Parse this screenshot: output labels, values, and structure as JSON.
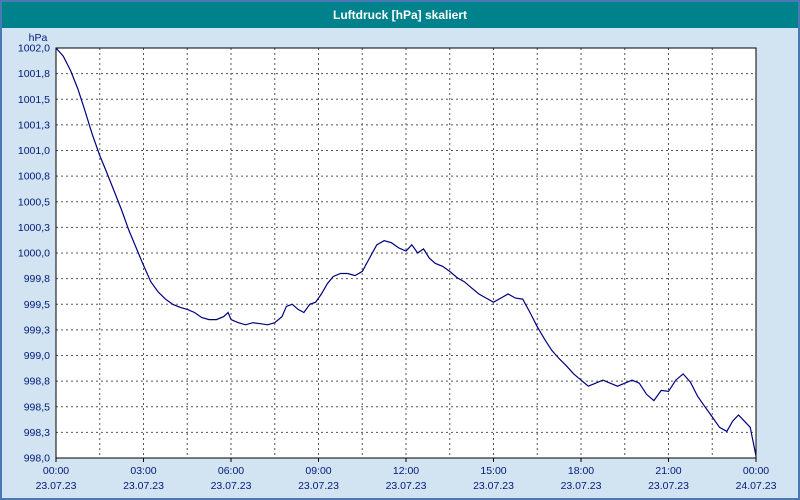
{
  "window": {
    "title": "Luftdruck [hPa] skaliert"
  },
  "colors": {
    "titlebar_bg": "#00828c",
    "titlebar_text": "#ffffff",
    "window_border": "#4a7ab5",
    "page_bg": "#d2e4f2"
  },
  "chart_data": {
    "type": "line",
    "title": "Luftdruck [hPa] skaliert",
    "ylabel": "hPa",
    "unit_label": "hPa",
    "xlabel": "",
    "ylim": [
      998.0,
      1002.0
    ],
    "y_tick_step": 0.25,
    "y_tick_labels": [
      "1002,0",
      "1001,8",
      "1001,5",
      "1001,3",
      "1001,0",
      "1000,8",
      "1000,5",
      "1000,3",
      "1000,0",
      "999,8",
      "999,5",
      "999,3",
      "999,0",
      "998,8",
      "998,5",
      "998,3",
      "998,0"
    ],
    "x_range_hours": [
      0,
      24
    ],
    "x_grid_step_hours": 1.5,
    "x_ticks": [
      {
        "hour": 0,
        "time": "00:00",
        "date": "23.07.23"
      },
      {
        "hour": 3,
        "time": "03:00",
        "date": "23.07.23"
      },
      {
        "hour": 6,
        "time": "06:00",
        "date": "23.07.23"
      },
      {
        "hour": 9,
        "time": "09:00",
        "date": "23.07.23"
      },
      {
        "hour": 12,
        "time": "12:00",
        "date": "23.07.23"
      },
      {
        "hour": 15,
        "time": "15:00",
        "date": "23.07.23"
      },
      {
        "hour": 18,
        "time": "18:00",
        "date": "23.07.23"
      },
      {
        "hour": 21,
        "time": "21:00",
        "date": "23.07.23"
      },
      {
        "hour": 24,
        "time": "00:00",
        "date": "24.07.23"
      }
    ],
    "grid": true,
    "legend": "none",
    "colors": {
      "plot_bg": "#ffffff",
      "grid": "#555555",
      "axis": "#000000",
      "text": "#001a7a",
      "line": "#000080"
    },
    "series": [
      {
        "name": "Luftdruck",
        "points": [
          [
            0,
            1002.0
          ],
          [
            0.25,
            1001.92
          ],
          [
            0.5,
            1001.78
          ],
          [
            0.75,
            1001.6
          ],
          [
            1,
            1001.38
          ],
          [
            1.25,
            1001.15
          ],
          [
            1.5,
            1000.95
          ],
          [
            1.75,
            1000.78
          ],
          [
            2,
            1000.6
          ],
          [
            2.25,
            1000.42
          ],
          [
            2.5,
            1000.22
          ],
          [
            2.75,
            1000.05
          ],
          [
            3,
            999.88
          ],
          [
            3.25,
            999.72
          ],
          [
            3.5,
            999.62
          ],
          [
            3.75,
            999.55
          ],
          [
            4,
            999.5
          ],
          [
            4.25,
            999.47
          ],
          [
            4.5,
            999.45
          ],
          [
            4.75,
            999.42
          ],
          [
            5,
            999.37
          ],
          [
            5.25,
            999.35
          ],
          [
            5.5,
            999.35
          ],
          [
            5.75,
            999.38
          ],
          [
            5.9,
            999.42
          ],
          [
            6,
            999.35
          ],
          [
            6.25,
            999.32
          ],
          [
            6.5,
            999.3
          ],
          [
            6.75,
            999.32
          ],
          [
            7,
            999.31
          ],
          [
            7.25,
            999.3
          ],
          [
            7.5,
            999.32
          ],
          [
            7.75,
            999.38
          ],
          [
            7.9,
            999.48
          ],
          [
            8.1,
            999.5
          ],
          [
            8.3,
            999.45
          ],
          [
            8.5,
            999.42
          ],
          [
            8.7,
            999.5
          ],
          [
            8.9,
            999.52
          ],
          [
            9.1,
            999.6
          ],
          [
            9.3,
            999.7
          ],
          [
            9.5,
            999.77
          ],
          [
            9.75,
            999.8
          ],
          [
            10,
            999.8
          ],
          [
            10.25,
            999.78
          ],
          [
            10.5,
            999.82
          ],
          [
            10.75,
            999.95
          ],
          [
            11,
            1000.08
          ],
          [
            11.25,
            1000.12
          ],
          [
            11.5,
            1000.1
          ],
          [
            11.75,
            1000.05
          ],
          [
            12,
            1000.02
          ],
          [
            12.2,
            1000.08
          ],
          [
            12.4,
            1000.0
          ],
          [
            12.6,
            1000.04
          ],
          [
            12.8,
            999.95
          ],
          [
            13,
            999.9
          ],
          [
            13.25,
            999.87
          ],
          [
            13.5,
            999.82
          ],
          [
            13.75,
            999.76
          ],
          [
            14,
            999.72
          ],
          [
            14.25,
            999.66
          ],
          [
            14.5,
            999.6
          ],
          [
            14.75,
            999.56
          ],
          [
            15,
            999.52
          ],
          [
            15.25,
            999.56
          ],
          [
            15.5,
            999.6
          ],
          [
            15.75,
            999.56
          ],
          [
            16,
            999.55
          ],
          [
            16.25,
            999.42
          ],
          [
            16.5,
            999.28
          ],
          [
            16.75,
            999.16
          ],
          [
            17,
            999.05
          ],
          [
            17.25,
            998.97
          ],
          [
            17.5,
            998.9
          ],
          [
            17.75,
            998.82
          ],
          [
            18,
            998.76
          ],
          [
            18.25,
            998.7
          ],
          [
            18.5,
            998.73
          ],
          [
            18.75,
            998.76
          ],
          [
            19,
            998.73
          ],
          [
            19.25,
            998.7
          ],
          [
            19.5,
            998.73
          ],
          [
            19.75,
            998.76
          ],
          [
            20,
            998.73
          ],
          [
            20.25,
            998.62
          ],
          [
            20.5,
            998.56
          ],
          [
            20.75,
            998.66
          ],
          [
            21,
            998.65
          ],
          [
            21.25,
            998.76
          ],
          [
            21.5,
            998.82
          ],
          [
            21.75,
            998.74
          ],
          [
            22,
            998.6
          ],
          [
            22.25,
            998.5
          ],
          [
            22.5,
            998.4
          ],
          [
            22.75,
            998.3
          ],
          [
            23,
            998.26
          ],
          [
            23.2,
            998.36
          ],
          [
            23.4,
            998.42
          ],
          [
            23.6,
            998.36
          ],
          [
            23.8,
            998.3
          ],
          [
            24,
            998.02
          ]
        ]
      }
    ]
  }
}
